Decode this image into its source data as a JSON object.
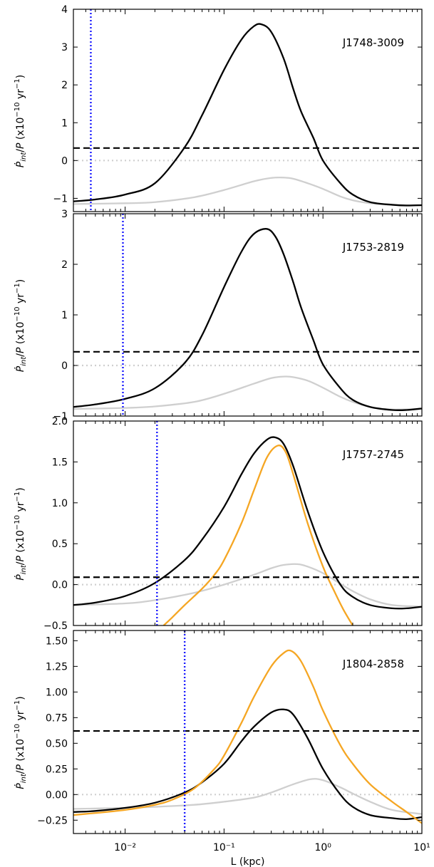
{
  "chart_data": [
    {
      "type": "line",
      "panel_label": "J1748-3009",
      "ylabel": "Ṗ_int/P (x10^-10 yr^-1)",
      "ylim": [
        -1.35,
        4.0
      ],
      "yticks": [
        4,
        3,
        2,
        1,
        0,
        -1
      ],
      "ytick_labels": [
        "4",
        "3",
        "2",
        "1",
        "0",
        "−1"
      ],
      "xscale": "log",
      "xlim": [
        0.003,
        10
      ],
      "reference_lines": {
        "dashed_black_y": 0.33,
        "dotted_gray_y": 0.0,
        "dotted_blue_x": 0.0045
      },
      "series": [
        {
          "color": "#000000",
          "x": [
            0.003,
            0.005,
            0.01,
            0.02,
            0.04,
            0.06,
            0.1,
            0.15,
            0.2,
            0.24,
            0.3,
            0.4,
            0.5,
            0.6,
            0.8,
            1.0,
            1.5,
            2,
            3,
            5,
            7,
            10
          ],
          "y": [
            -1.08,
            -1.03,
            -0.9,
            -0.6,
            0.35,
            1.2,
            2.4,
            3.2,
            3.55,
            3.6,
            3.4,
            2.7,
            1.9,
            1.3,
            0.6,
            0.0,
            -0.6,
            -0.9,
            -1.1,
            -1.17,
            -1.19,
            -1.18
          ]
        },
        {
          "color": "#cfcfcf",
          "x": [
            0.003,
            0.01,
            0.02,
            0.05,
            0.1,
            0.2,
            0.3,
            0.4,
            0.5,
            0.7,
            1.0,
            1.5,
            2,
            3,
            5,
            10
          ],
          "y": [
            -1.15,
            -1.13,
            -1.1,
            -0.97,
            -0.78,
            -0.55,
            -0.46,
            -0.45,
            -0.48,
            -0.6,
            -0.75,
            -0.95,
            -1.05,
            -1.13,
            -1.17,
            -1.18
          ]
        }
      ]
    },
    {
      "type": "line",
      "panel_label": "J1753-2819",
      "ylabel": "Ṗ_int/P (x10^-10 yr^-1)",
      "ylim": [
        -1.0,
        3.0
      ],
      "yticks": [
        3,
        2,
        1,
        0,
        -1
      ],
      "ytick_labels": [
        "3",
        "2",
        "1",
        "0",
        "−1"
      ],
      "xscale": "log",
      "xlim": [
        0.003,
        10
      ],
      "reference_lines": {
        "dashed_black_y": 0.27,
        "dotted_gray_y": 0.0,
        "dotted_blue_x": 0.0095
      },
      "series": [
        {
          "color": "#000000",
          "x": [
            0.003,
            0.005,
            0.01,
            0.02,
            0.04,
            0.06,
            0.1,
            0.15,
            0.2,
            0.27,
            0.33,
            0.4,
            0.5,
            0.6,
            0.8,
            1.0,
            1.5,
            2,
            3,
            5,
            7,
            10
          ],
          "y": [
            -0.82,
            -0.77,
            -0.66,
            -0.45,
            0.05,
            0.6,
            1.55,
            2.25,
            2.6,
            2.7,
            2.55,
            2.2,
            1.65,
            1.15,
            0.5,
            0.02,
            -0.45,
            -0.68,
            -0.82,
            -0.88,
            -0.88,
            -0.85
          ]
        },
        {
          "color": "#cfcfcf",
          "x": [
            0.003,
            0.01,
            0.02,
            0.05,
            0.1,
            0.2,
            0.3,
            0.4,
            0.5,
            0.7,
            1.0,
            1.5,
            2,
            3,
            5,
            10
          ],
          "y": [
            -0.86,
            -0.84,
            -0.81,
            -0.72,
            -0.56,
            -0.36,
            -0.25,
            -0.22,
            -0.23,
            -0.3,
            -0.44,
            -0.62,
            -0.72,
            -0.82,
            -0.87,
            -0.86
          ]
        }
      ]
    },
    {
      "type": "line",
      "panel_label": "J1757-2745",
      "ylabel": "Ṗ_int/P (x10^-10 yr^-1)",
      "ylim": [
        -0.5,
        2.0
      ],
      "yticks": [
        2.0,
        1.5,
        1.0,
        0.5,
        0.0,
        -0.5
      ],
      "ytick_labels": [
        "2.0",
        "1.5",
        "1.0",
        "0.5",
        "0.0",
        "−0.5"
      ],
      "xscale": "log",
      "xlim": [
        0.003,
        10
      ],
      "reference_lines": {
        "dashed_black_y": 0.09,
        "dotted_gray_y": 0.0,
        "dotted_blue_x": 0.021
      },
      "series": [
        {
          "color": "#000000",
          "x": [
            0.003,
            0.005,
            0.01,
            0.02,
            0.04,
            0.06,
            0.1,
            0.15,
            0.2,
            0.27,
            0.33,
            0.4,
            0.5,
            0.7,
            1.0,
            1.5,
            2,
            3,
            5,
            7,
            10
          ],
          "y": [
            -0.25,
            -0.22,
            -0.14,
            0.02,
            0.3,
            0.55,
            0.95,
            1.35,
            1.6,
            1.77,
            1.8,
            1.72,
            1.45,
            0.9,
            0.4,
            0.0,
            -0.15,
            -0.25,
            -0.29,
            -0.29,
            -0.27
          ]
        },
        {
          "color": "#f5a623",
          "x": [
            0.0245,
            0.03,
            0.04,
            0.06,
            0.08,
            0.1,
            0.15,
            0.2,
            0.27,
            0.35,
            0.42,
            0.5,
            0.7,
            1.0,
            1.3,
            1.6,
            2.0
          ],
          "y": [
            -0.5,
            -0.4,
            -0.25,
            -0.05,
            0.12,
            0.3,
            0.75,
            1.15,
            1.55,
            1.7,
            1.62,
            1.35,
            0.75,
            0.22,
            -0.08,
            -0.3,
            -0.5
          ]
        },
        {
          "color": "#cfcfcf",
          "x": [
            0.003,
            0.01,
            0.02,
            0.05,
            0.1,
            0.2,
            0.3,
            0.4,
            0.55,
            0.7,
            1.0,
            1.5,
            2,
            3,
            5,
            10
          ],
          "y": [
            -0.25,
            -0.23,
            -0.19,
            -0.1,
            0.0,
            0.12,
            0.2,
            0.24,
            0.25,
            0.22,
            0.14,
            0.01,
            -0.08,
            -0.18,
            -0.25,
            -0.27
          ]
        }
      ]
    },
    {
      "type": "line",
      "panel_label": "J1804-2858",
      "ylabel": "Ṗ_int/P (x10^-10 yr^-1)",
      "xlabel": "L (kpc)",
      "ylim": [
        -0.38,
        1.6
      ],
      "yticks": [
        1.5,
        1.25,
        1.0,
        0.75,
        0.5,
        0.25,
        0.0,
        -0.25
      ],
      "ytick_labels": [
        "1.50",
        "1.25",
        "1.00",
        "0.75",
        "0.50",
        "0.25",
        "0.00",
        "−0.25"
      ],
      "xscale": "log",
      "xlim": [
        0.003,
        10
      ],
      "xticks": [
        0.01,
        0.1,
        1,
        10
      ],
      "xtick_labels": [
        "10⁻²",
        "10⁻¹",
        "10⁰",
        "10¹"
      ],
      "reference_lines": {
        "dashed_black_y": 0.62,
        "dotted_gray_y": 0.0,
        "dotted_blue_x": 0.04
      },
      "series": [
        {
          "color": "#000000",
          "x": [
            0.003,
            0.005,
            0.01,
            0.02,
            0.04,
            0.06,
            0.1,
            0.15,
            0.2,
            0.3,
            0.4,
            0.5,
            0.7,
            1.0,
            1.5,
            2,
            3,
            5,
            7,
            10
          ],
          "y": [
            -0.17,
            -0.16,
            -0.13,
            -0.08,
            0.02,
            0.12,
            0.3,
            0.52,
            0.66,
            0.8,
            0.83,
            0.78,
            0.55,
            0.25,
            0.0,
            -0.12,
            -0.2,
            -0.23,
            -0.24,
            -0.22
          ]
        },
        {
          "color": "#f5a623",
          "x": [
            0.003,
            0.005,
            0.01,
            0.02,
            0.03,
            0.05,
            0.08,
            0.1,
            0.15,
            0.2,
            0.3,
            0.4,
            0.48,
            0.6,
            0.8,
            1.0,
            1.5,
            2,
            3,
            5,
            7,
            10
          ],
          "y": [
            -0.2,
            -0.18,
            -0.15,
            -0.1,
            -0.05,
            0.06,
            0.25,
            0.38,
            0.7,
            0.95,
            1.25,
            1.38,
            1.4,
            1.3,
            1.05,
            0.82,
            0.48,
            0.3,
            0.1,
            -0.07,
            -0.17,
            -0.28
          ]
        },
        {
          "color": "#cfcfcf",
          "x": [
            0.003,
            0.01,
            0.02,
            0.05,
            0.1,
            0.2,
            0.3,
            0.5,
            0.75,
            1.0,
            1.5,
            2,
            3,
            5,
            10
          ],
          "y": [
            -0.14,
            -0.13,
            -0.12,
            -0.1,
            -0.07,
            -0.03,
            0.02,
            0.1,
            0.15,
            0.14,
            0.07,
            0.01,
            -0.07,
            -0.15,
            -0.19
          ]
        }
      ]
    }
  ]
}
